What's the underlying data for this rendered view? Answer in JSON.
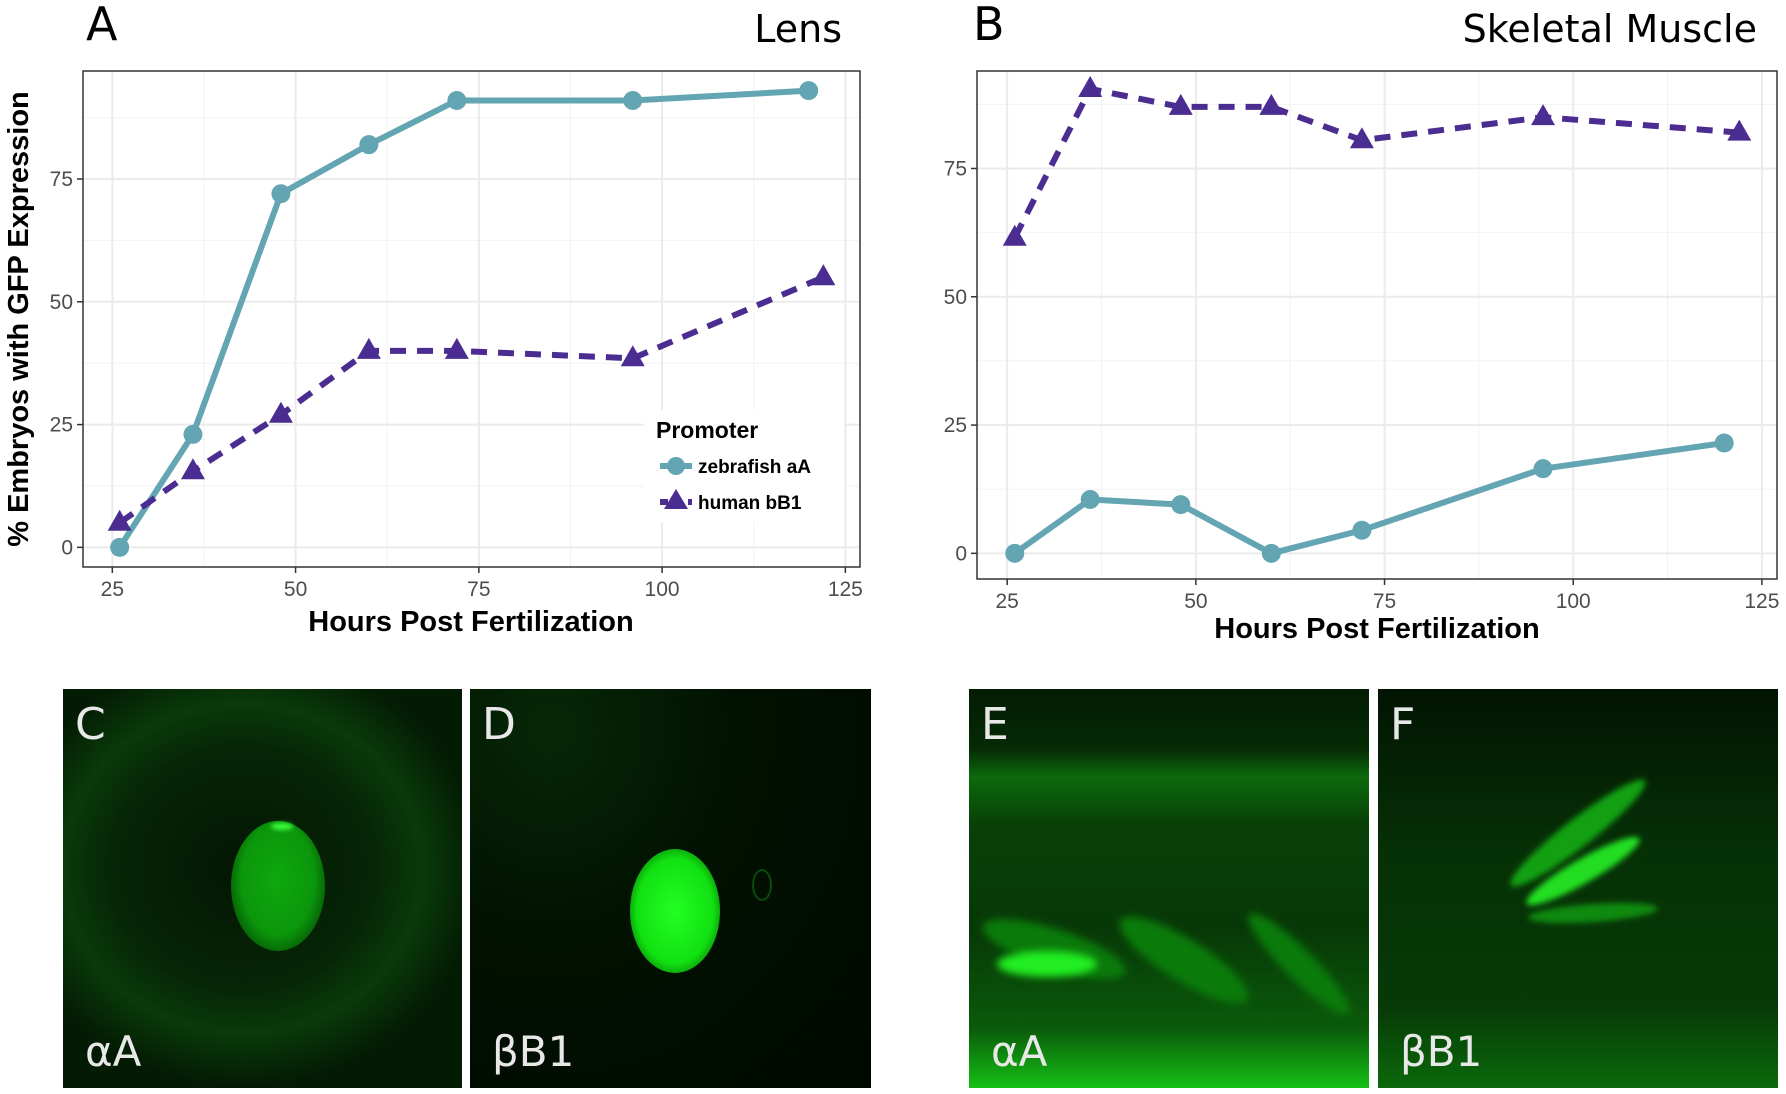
{
  "chart_data": [
    {
      "type": "line",
      "panel": "A",
      "title": "Lens",
      "xlabel": "Hours Post Fertilization",
      "ylabel": "% Embryos with GFP Expression",
      "xlim": [
        21,
        127
      ],
      "ylim": [
        -4,
        97
      ],
      "xticks": [
        25,
        50,
        75,
        100,
        125
      ],
      "yticks": [
        0,
        25,
        50,
        75
      ],
      "grid": true,
      "legend": {
        "title": "Promoter",
        "placement": "bottom-right"
      },
      "series": [
        {
          "name": "zebrafish aA",
          "color": "#63A5B2",
          "marker": "circle",
          "dash": "solid",
          "x": [
            26,
            36,
            48,
            60,
            72,
            96,
            120
          ],
          "y": [
            0,
            23,
            72,
            82,
            91,
            91,
            93
          ]
        },
        {
          "name": "human bB1",
          "color": "#4B2D91",
          "marker": "triangle",
          "dash": "dashed",
          "x": [
            26,
            36,
            48,
            60,
            72,
            96,
            122
          ],
          "y": [
            5,
            15.5,
            27,
            40,
            40,
            38.5,
            55
          ]
        }
      ]
    },
    {
      "type": "line",
      "panel": "B",
      "title": "Skeletal Muscle",
      "xlabel": "Hours Post Fertilization",
      "ylabel": "",
      "xlim": [
        21,
        127
      ],
      "ylim": [
        -5,
        94
      ],
      "xticks": [
        25,
        50,
        75,
        100,
        125
      ],
      "yticks": [
        0,
        25,
        50,
        75
      ],
      "grid": true,
      "series": [
        {
          "name": "zebrafish aA",
          "color": "#63A5B2",
          "marker": "circle",
          "dash": "solid",
          "x": [
            26,
            36,
            48,
            60,
            72,
            96,
            120
          ],
          "y": [
            0,
            10.5,
            9.5,
            0,
            4.5,
            16.5,
            21.5
          ]
        },
        {
          "name": "human bB1",
          "color": "#4B2D91",
          "marker": "triangle",
          "dash": "dashed",
          "x": [
            26,
            36,
            48,
            60,
            72,
            96,
            122
          ],
          "y": [
            61.5,
            90.5,
            87,
            87,
            80.5,
            85,
            82
          ]
        }
      ]
    }
  ],
  "images": [
    {
      "letter": "C",
      "label": "αA"
    },
    {
      "letter": "D",
      "label": "βB1"
    },
    {
      "letter": "E",
      "label": "αA"
    },
    {
      "letter": "F",
      "label": "βB1"
    }
  ]
}
